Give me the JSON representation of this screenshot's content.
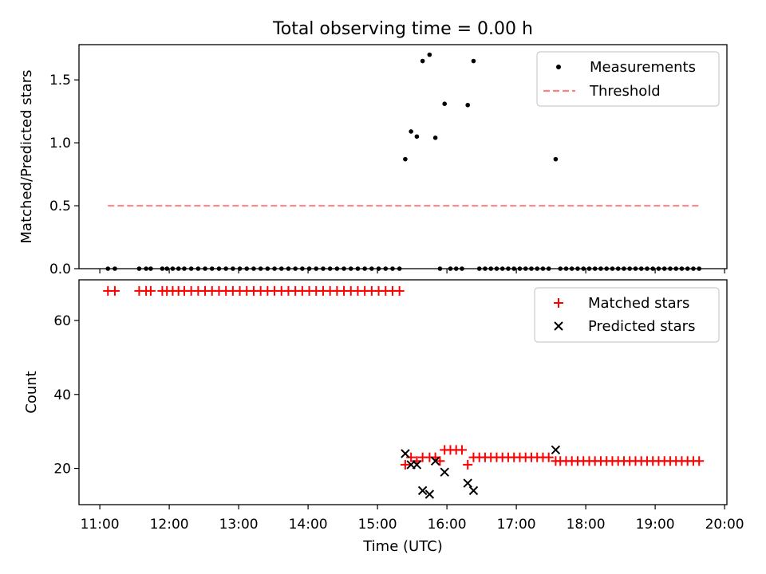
{
  "figure": {
    "title": "Total observing time = 0.00 h"
  },
  "chart_data": [
    {
      "type": "scatter",
      "title": "Total observing time = 0.00 h",
      "xlabel": "Time (UTC)",
      "ylabel": "Matched/Predicted stars",
      "xlim": [
        "10:42",
        "20:02"
      ],
      "ylim": [
        0,
        1.78
      ],
      "yticks": [
        0.0,
        0.5,
        1.0,
        1.5
      ],
      "ytick_labels": [
        "0.0",
        "0.5",
        "1.0",
        "1.5"
      ],
      "legend": {
        "position": "upper right",
        "entries": [
          "Measurements",
          "Threshold"
        ]
      },
      "grid": false,
      "series": [
        {
          "name": "Measurements",
          "kind": "scatter",
          "marker": "dot",
          "color": "#000000",
          "points": [
            [
              "15:24",
              0.87
            ],
            [
              "15:29",
              1.09
            ],
            [
              "15:34",
              1.05
            ],
            [
              "15:39",
              1.65
            ],
            [
              "15:45",
              1.7
            ],
            [
              "15:50",
              1.04
            ],
            [
              "15:58",
              1.31
            ],
            [
              "16:18",
              1.3
            ],
            [
              "16:23",
              1.65
            ],
            [
              "17:34",
              0.87
            ],
            [
              "11:07",
              0
            ],
            [
              "11:13",
              0
            ],
            [
              "11:34",
              0
            ],
            [
              "11:40",
              0
            ],
            [
              "11:44",
              0
            ],
            [
              "11:54",
              0
            ],
            [
              "11:58",
              0
            ],
            [
              "12:03",
              0
            ],
            [
              "12:08",
              0
            ],
            [
              "12:13",
              0
            ],
            [
              "12:19",
              0
            ],
            [
              "12:25",
              0
            ],
            [
              "12:31",
              0
            ],
            [
              "12:37",
              0
            ],
            [
              "12:43",
              0
            ],
            [
              "12:49",
              0
            ],
            [
              "12:55",
              0
            ],
            [
              "13:01",
              0
            ],
            [
              "13:07",
              0
            ],
            [
              "13:13",
              0
            ],
            [
              "13:19",
              0
            ],
            [
              "13:25",
              0
            ],
            [
              "13:31",
              0
            ],
            [
              "13:37",
              0
            ],
            [
              "13:43",
              0
            ],
            [
              "13:49",
              0
            ],
            [
              "13:55",
              0
            ],
            [
              "14:01",
              0
            ],
            [
              "14:07",
              0
            ],
            [
              "14:13",
              0
            ],
            [
              "14:19",
              0
            ],
            [
              "14:25",
              0
            ],
            [
              "14:31",
              0
            ],
            [
              "14:37",
              0
            ],
            [
              "14:43",
              0
            ],
            [
              "14:49",
              0
            ],
            [
              "14:55",
              0
            ],
            [
              "15:01",
              0
            ],
            [
              "15:07",
              0
            ],
            [
              "15:13",
              0
            ],
            [
              "15:19",
              0
            ],
            [
              "15:54",
              0
            ],
            [
              "16:03",
              0
            ],
            [
              "16:08",
              0
            ],
            [
              "16:13",
              0
            ],
            [
              "16:28",
              0
            ],
            [
              "16:33",
              0
            ],
            [
              "16:38",
              0
            ],
            [
              "16:43",
              0
            ],
            [
              "16:48",
              0
            ],
            [
              "16:53",
              0
            ],
            [
              "16:58",
              0
            ],
            [
              "17:03",
              0
            ],
            [
              "17:08",
              0
            ],
            [
              "17:13",
              0
            ],
            [
              "17:18",
              0
            ],
            [
              "17:23",
              0
            ],
            [
              "17:28",
              0
            ],
            [
              "17:38",
              0
            ],
            [
              "17:43",
              0
            ],
            [
              "17:48",
              0
            ],
            [
              "17:53",
              0
            ],
            [
              "17:58",
              0
            ],
            [
              "18:03",
              0
            ],
            [
              "18:08",
              0
            ],
            [
              "18:13",
              0
            ],
            [
              "18:18",
              0
            ],
            [
              "18:23",
              0
            ],
            [
              "18:28",
              0
            ],
            [
              "18:33",
              0
            ],
            [
              "18:38",
              0
            ],
            [
              "18:43",
              0
            ],
            [
              "18:48",
              0
            ],
            [
              "18:53",
              0
            ],
            [
              "18:58",
              0
            ],
            [
              "19:03",
              0
            ],
            [
              "19:08",
              0
            ],
            [
              "19:13",
              0
            ],
            [
              "19:18",
              0
            ],
            [
              "19:23",
              0
            ],
            [
              "19:28",
              0
            ],
            [
              "19:33",
              0
            ],
            [
              "19:38",
              0
            ]
          ]
        },
        {
          "name": "Threshold",
          "kind": "line",
          "style": "dashed",
          "color": "#ff7f7f",
          "points": [
            [
              "11:07",
              0.5
            ],
            [
              "19:38",
              0.5
            ]
          ]
        }
      ]
    },
    {
      "type": "scatter",
      "xlabel": "Time (UTC)",
      "ylabel": "Count",
      "xlim": [
        "10:42",
        "20:02"
      ],
      "ylim": [
        10.2,
        71
      ],
      "yticks": [
        20,
        40,
        60
      ],
      "ytick_labels": [
        "20",
        "40",
        "60"
      ],
      "xticks": [
        "11:00",
        "12:00",
        "13:00",
        "14:00",
        "15:00",
        "16:00",
        "17:00",
        "18:00",
        "19:00",
        "20:00"
      ],
      "xtick_labels": [
        "11:00",
        "12:00",
        "13:00",
        "14:00",
        "15:00",
        "16:00",
        "17:00",
        "18:00",
        "19:00",
        "20:00"
      ],
      "legend": {
        "position": "upper right",
        "entries": [
          "Matched stars",
          "Predicted stars"
        ]
      },
      "grid": false,
      "series": [
        {
          "name": "Matched stars",
          "kind": "scatter",
          "marker": "plus",
          "color": "#ff0000",
          "points": [
            [
              "11:07",
              68
            ],
            [
              "11:13",
              68
            ],
            [
              "11:34",
              68
            ],
            [
              "11:40",
              68
            ],
            [
              "11:44",
              68
            ],
            [
              "11:54",
              68
            ],
            [
              "11:58",
              68
            ],
            [
              "12:03",
              68
            ],
            [
              "12:08",
              68
            ],
            [
              "12:13",
              68
            ],
            [
              "12:19",
              68
            ],
            [
              "12:25",
              68
            ],
            [
              "12:31",
              68
            ],
            [
              "12:37",
              68
            ],
            [
              "12:43",
              68
            ],
            [
              "12:49",
              68
            ],
            [
              "12:55",
              68
            ],
            [
              "13:01",
              68
            ],
            [
              "13:07",
              68
            ],
            [
              "13:13",
              68
            ],
            [
              "13:19",
              68
            ],
            [
              "13:25",
              68
            ],
            [
              "13:31",
              68
            ],
            [
              "13:37",
              68
            ],
            [
              "13:43",
              68
            ],
            [
              "13:49",
              68
            ],
            [
              "13:55",
              68
            ],
            [
              "14:01",
              68
            ],
            [
              "14:07",
              68
            ],
            [
              "14:13",
              68
            ],
            [
              "14:19",
              68
            ],
            [
              "14:25",
              68
            ],
            [
              "14:31",
              68
            ],
            [
              "14:37",
              68
            ],
            [
              "14:43",
              68
            ],
            [
              "14:49",
              68
            ],
            [
              "14:55",
              68
            ],
            [
              "15:01",
              68
            ],
            [
              "15:07",
              68
            ],
            [
              "15:13",
              68
            ],
            [
              "15:19",
              68
            ],
            [
              "15:24",
              21
            ],
            [
              "15:29",
              23
            ],
            [
              "15:34",
              22
            ],
            [
              "15:39",
              23
            ],
            [
              "15:45",
              23
            ],
            [
              "15:50",
              23
            ],
            [
              "15:54",
              22
            ],
            [
              "15:58",
              25
            ],
            [
              "16:03",
              25
            ],
            [
              "16:08",
              25
            ],
            [
              "16:13",
              25
            ],
            [
              "16:18",
              21
            ],
            [
              "16:23",
              23
            ],
            [
              "16:28",
              23
            ],
            [
              "16:33",
              23
            ],
            [
              "16:38",
              23
            ],
            [
              "16:43",
              23
            ],
            [
              "16:48",
              23
            ],
            [
              "16:53",
              23
            ],
            [
              "16:58",
              23
            ],
            [
              "17:03",
              23
            ],
            [
              "17:08",
              23
            ],
            [
              "17:13",
              23
            ],
            [
              "17:18",
              23
            ],
            [
              "17:23",
              23
            ],
            [
              "17:28",
              23
            ],
            [
              "17:34",
              22
            ],
            [
              "17:38",
              22
            ],
            [
              "17:43",
              22
            ],
            [
              "17:48",
              22
            ],
            [
              "17:53",
              22
            ],
            [
              "17:58",
              22
            ],
            [
              "18:03",
              22
            ],
            [
              "18:08",
              22
            ],
            [
              "18:13",
              22
            ],
            [
              "18:18",
              22
            ],
            [
              "18:23",
              22
            ],
            [
              "18:28",
              22
            ],
            [
              "18:33",
              22
            ],
            [
              "18:38",
              22
            ],
            [
              "18:43",
              22
            ],
            [
              "18:48",
              22
            ],
            [
              "18:53",
              22
            ],
            [
              "18:58",
              22
            ],
            [
              "19:03",
              22
            ],
            [
              "19:08",
              22
            ],
            [
              "19:13",
              22
            ],
            [
              "19:18",
              22
            ],
            [
              "19:23",
              22
            ],
            [
              "19:28",
              22
            ],
            [
              "19:33",
              22
            ],
            [
              "19:38",
              22
            ]
          ]
        },
        {
          "name": "Predicted stars",
          "kind": "scatter",
          "marker": "x",
          "color": "#000000",
          "points": [
            [
              "15:24",
              24
            ],
            [
              "15:29",
              21
            ],
            [
              "15:34",
              21
            ],
            [
              "15:39",
              14
            ],
            [
              "15:45",
              13
            ],
            [
              "15:50",
              22
            ],
            [
              "15:58",
              19
            ],
            [
              "16:18",
              16
            ],
            [
              "16:23",
              14
            ],
            [
              "17:34",
              25
            ]
          ]
        }
      ]
    }
  ]
}
